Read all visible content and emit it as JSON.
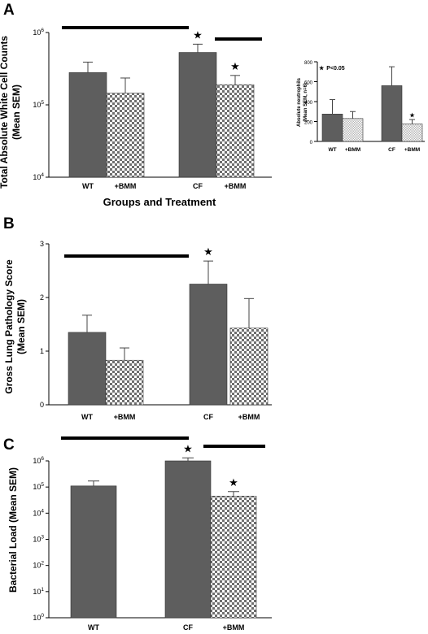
{
  "colors": {
    "solid_bar": "#5e5e5e",
    "checker_dark": "#6f6f6f",
    "inset_hatch": "#b5b5b5",
    "axis": "#000000"
  },
  "chart_data": [
    {
      "panel": "A",
      "type": "bar",
      "ylabel_lines": [
        "Total Absolute White Cell Counts",
        "(Mean  SEM)"
      ],
      "xlabel": "Groups and Treatment",
      "y_scale": "log",
      "ylim": [
        10000,
        1000000
      ],
      "y_ticks": [
        {
          "v": 10000,
          "b": "10",
          "e": "4"
        },
        {
          "v": 100000,
          "b": "10",
          "e": "5"
        },
        {
          "v": 1000000,
          "b": "10",
          "e": "6"
        }
      ],
      "bars": [
        {
          "label": "WT",
          "value": 280000,
          "err": 110000,
          "fill": "solid",
          "star": false
        },
        {
          "label": "+BMM",
          "value": 145000,
          "err": 90000,
          "fill": "checker",
          "star": false
        },
        {
          "label": "CF",
          "value": 530000,
          "err": 160000,
          "fill": "solid",
          "star": true
        },
        {
          "label": "+BMM",
          "value": 190000,
          "err": 65000,
          "fill": "checker",
          "star": true
        }
      ],
      "star_symbol": "★",
      "inset": {
        "type": "bar",
        "ylabel_lines": [
          "Absolute neutrophils",
          "(Mean SEM, n=6)"
        ],
        "note": "P<0.05",
        "ylim": [
          0,
          800
        ],
        "y_ticks": [
          0,
          200,
          400,
          600,
          800
        ],
        "bars": [
          {
            "label": "WT",
            "value": 275,
            "err": 145,
            "fill": "solid",
            "star": false
          },
          {
            "label": "+BMM",
            "value": 230,
            "err": 70,
            "fill": "hatch",
            "star": false
          },
          {
            "label": "CF",
            "value": 560,
            "err": 190,
            "fill": "solid",
            "star": false
          },
          {
            "label": "+BMM",
            "value": 175,
            "err": 45,
            "fill": "hatch",
            "star": true
          }
        ]
      }
    },
    {
      "panel": "B",
      "type": "bar",
      "ylabel_lines": [
        "Gross Lung Pathology Score",
        "(Mean  SEM)"
      ],
      "ylim": [
        0,
        3
      ],
      "y_ticks": [
        0,
        1,
        2,
        3
      ],
      "bars": [
        {
          "label": "WT",
          "value": 1.35,
          "err": 0.32,
          "fill": "solid",
          "star": false
        },
        {
          "label": "+BMM",
          "value": 0.83,
          "err": 0.23,
          "fill": "checker",
          "star": false
        },
        {
          "label": "CF",
          "value": 2.25,
          "err": 0.43,
          "fill": "solid",
          "star": true
        },
        {
          "label": "+BMM",
          "value": 1.43,
          "err": 0.55,
          "fill": "checker",
          "star": false
        }
      ]
    },
    {
      "panel": "C",
      "type": "bar",
      "ylabel_lines": [
        "Bacterial Load (Mean  SEM)"
      ],
      "y_scale": "log",
      "ylim": [
        1,
        1000000
      ],
      "y_ticks": [
        {
          "v": 1,
          "b": "10",
          "e": "0"
        },
        {
          "v": 10,
          "b": "10",
          "e": "1"
        },
        {
          "v": 100,
          "b": "10",
          "e": "2"
        },
        {
          "v": 1000,
          "b": "10",
          "e": "3"
        },
        {
          "v": 10000,
          "b": "10",
          "e": "4"
        },
        {
          "v": 100000,
          "b": "10",
          "e": "5"
        },
        {
          "v": 1000000,
          "b": "10",
          "e": "6"
        }
      ],
      "bars": [
        {
          "label": "WT",
          "value": 110000,
          "err": 60000,
          "fill": "solid",
          "star": false
        },
        {
          "label": "CF",
          "value": 1000000,
          "err": 300000,
          "fill": "solid",
          "star": true
        },
        {
          "label": "+BMM",
          "value": 45000,
          "err": 22000,
          "fill": "checker",
          "star": true
        }
      ]
    }
  ]
}
